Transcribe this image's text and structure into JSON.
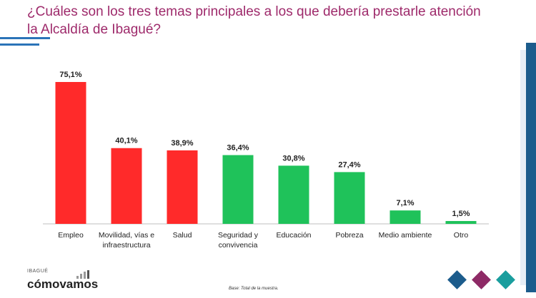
{
  "title_line1": "¿Cuáles son los tres temas principales a los que debería prestarle atención",
  "title_line2": "la Alcaldía de Ibagué?",
  "logo": {
    "small": "IBAGUÉ",
    "big": "cómovamos"
  },
  "note": "Base: Total de la muestra.",
  "colors": {
    "red": "#ff2a2a",
    "green": "#1fc25a",
    "title": "#9e2a6b",
    "blue": "#1c5c8c",
    "purple": "#8e2a66",
    "teal": "#1a9e9e"
  },
  "chart_data": {
    "type": "bar",
    "categories": [
      "Empleo",
      "Movilidad, vías e infraestructura",
      "Salud",
      "Seguridad y convivencia",
      "Educación",
      "Pobreza",
      "Medio ambiente",
      "Otro"
    ],
    "category_lines": [
      [
        "Empleo"
      ],
      [
        "Movilidad, vías e",
        "infraestructura"
      ],
      [
        "Salud"
      ],
      [
        "Seguridad y",
        "convivencia"
      ],
      [
        "Educación"
      ],
      [
        "Pobreza"
      ],
      [
        "Medio ambiente"
      ],
      [
        "Otro"
      ]
    ],
    "values": [
      75.1,
      40.1,
      38.9,
      36.4,
      30.8,
      27.4,
      7.1,
      1.5
    ],
    "value_labels": [
      "75,1%",
      "40,1%",
      "38,9%",
      "36,4%",
      "30,8%",
      "27,4%",
      "7,1%",
      "1,5%"
    ],
    "bar_colors": [
      "#ff2a2a",
      "#ff2a2a",
      "#ff2a2a",
      "#1fc25a",
      "#1fc25a",
      "#1fc25a",
      "#1fc25a",
      "#1fc25a"
    ],
    "title": "¿Cuáles son los tres temas principales a los que debería prestarle atención la Alcaldía de Ibagué?",
    "xlabel": "",
    "ylabel": "",
    "ylim": [
      0,
      80
    ]
  }
}
